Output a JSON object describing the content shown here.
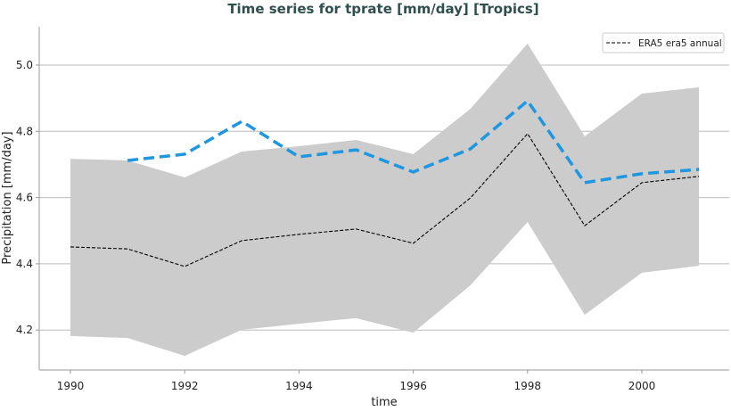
{
  "chart_data": {
    "type": "line",
    "title": "Time series for tprate [mm/day] [Tropics]",
    "xlabel": "time",
    "ylabel": "Precipitation [mm/day]",
    "xlim": [
      1989.4,
      2001.6
    ],
    "ylim": [
      4.09,
      5.12
    ],
    "xticks": [
      1990,
      1992,
      1994,
      1996,
      1998,
      2000
    ],
    "yticks": [
      4.2,
      4.4,
      4.6,
      4.8,
      5.0
    ],
    "ytick_labels": [
      "4.2",
      "4.4",
      "4.6",
      "4.8",
      "5.0"
    ],
    "grid": "horizontal",
    "legend": {
      "placement": "top-right",
      "entries": [
        "ERA5 era5 annual"
      ]
    },
    "x": [
      1990,
      1991,
      1992,
      1993,
      1994,
      1995,
      1996,
      1997,
      1998,
      1999,
      2000,
      2001
    ],
    "series": [
      {
        "name": "ERA5 era5 annual",
        "color": "#000000",
        "style": "dashed",
        "values": [
          4.451,
          4.445,
          4.392,
          4.47,
          4.489,
          4.505,
          4.462,
          4.599,
          4.793,
          4.515,
          4.645,
          4.664
        ]
      },
      {
        "color": "#1f97e0",
        "style": "dashed",
        "values": [
          null,
          4.712,
          4.731,
          4.83,
          4.723,
          4.744,
          4.677,
          4.747,
          4.892,
          4.645,
          4.672,
          4.685
        ]
      }
    ],
    "band": {
      "color": "#cccccc",
      "upper": [
        4.717,
        4.712,
        4.661,
        4.739,
        4.755,
        4.774,
        4.731,
        4.868,
        5.065,
        4.785,
        4.914,
        4.933
      ],
      "lower": [
        4.182,
        4.176,
        4.122,
        4.201,
        4.219,
        4.236,
        4.192,
        4.335,
        4.526,
        4.246,
        4.373,
        4.394
      ]
    }
  }
}
